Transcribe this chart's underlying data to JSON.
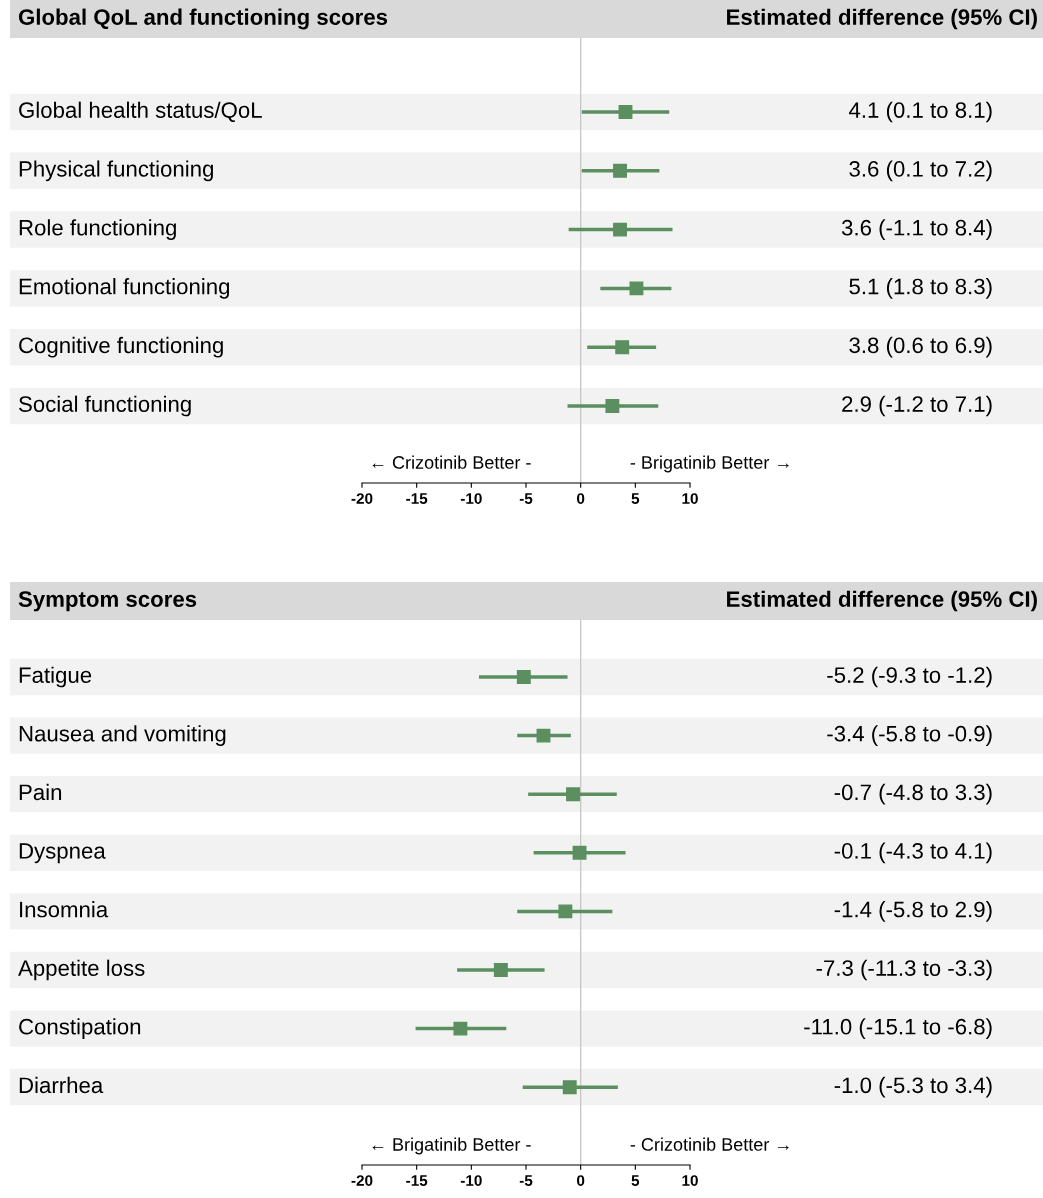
{
  "chart_data": [
    {
      "type": "scatter",
      "orientation": "horizontal",
      "title": "Global QoL and functioning scores",
      "categories": [
        "Global health status/QoL",
        "Physical functioning",
        "Role functioning",
        "Emotional functioning",
        "Cognitive functioning",
        "Social functioning"
      ],
      "values": [
        4.1,
        3.6,
        3.6,
        5.1,
        3.8,
        2.9
      ],
      "errors": [
        [
          0.1,
          8.1
        ],
        [
          0.1,
          7.2
        ],
        [
          -1.1,
          8.4
        ],
        [
          1.8,
          8.3
        ],
        [
          0.6,
          6.9
        ],
        [
          -1.2,
          7.1
        ]
      ],
      "value_labels": [
        "4.1 (0.1 to 8.1)",
        "3.6 (0.1 to 7.2)",
        "3.6 (-1.1 to 8.4)",
        "5.1 (1.8 to 8.3)",
        "3.8 (0.6 to 6.9)",
        "2.9 (-1.2 to 7.1)"
      ],
      "color": "#5b8f5f",
      "marker": "square",
      "xlim": [
        -20,
        10
      ],
      "xticks": [
        -20,
        -15,
        -10,
        -5,
        0,
        5,
        10
      ],
      "ref_lines": [
        {
          "axis": "x",
          "value": 0,
          "color": "#c8c8c8"
        }
      ],
      "annotations": [
        "← Crizotinib Better -",
        "- Brigatinib Better →",
        "Estimated difference (95% CI)"
      ],
      "grid": false,
      "legend": false
    },
    {
      "type": "scatter",
      "orientation": "horizontal",
      "title": "Symptom scores",
      "categories": [
        "Fatigue",
        "Nausea and vomiting",
        "Pain",
        "Dyspnea",
        "Insomnia",
        "Appetite loss",
        "Constipation",
        "Diarrhea"
      ],
      "values": [
        -5.2,
        -3.4,
        -0.7,
        -0.1,
        -1.4,
        -7.3,
        -11.0,
        -1.0
      ],
      "errors": [
        [
          -9.3,
          -1.2
        ],
        [
          -5.8,
          -0.9
        ],
        [
          -4.8,
          3.3
        ],
        [
          -4.3,
          4.1
        ],
        [
          -5.8,
          2.9
        ],
        [
          -11.3,
          -3.3
        ],
        [
          -15.1,
          -6.8
        ],
        [
          -5.3,
          3.4
        ]
      ],
      "value_labels": [
        "-5.2 (-9.3 to -1.2)",
        "-3.4 (-5.8 to -0.9)",
        "-0.7 (-4.8 to 3.3)",
        "-0.1 (-4.3 to 4.1)",
        "-1.4 (-5.8 to 2.9)",
        "-7.3 (-11.3 to -3.3)",
        "-11.0 (-15.1 to -6.8)",
        "-1.0 (-5.3 to 3.4)"
      ],
      "color": "#5b8f5f",
      "marker": "square",
      "xlim": [
        -20,
        10
      ],
      "xticks": [
        -20,
        -15,
        -10,
        -5,
        0,
        5,
        10
      ],
      "ref_lines": [
        {
          "axis": "x",
          "value": 0,
          "color": "#c8c8c8"
        }
      ],
      "annotations": [
        "← Brigatinib Better -",
        "- Crizotinib Better →",
        "Estimated difference (95% CI)"
      ],
      "grid": false,
      "legend": false
    }
  ]
}
